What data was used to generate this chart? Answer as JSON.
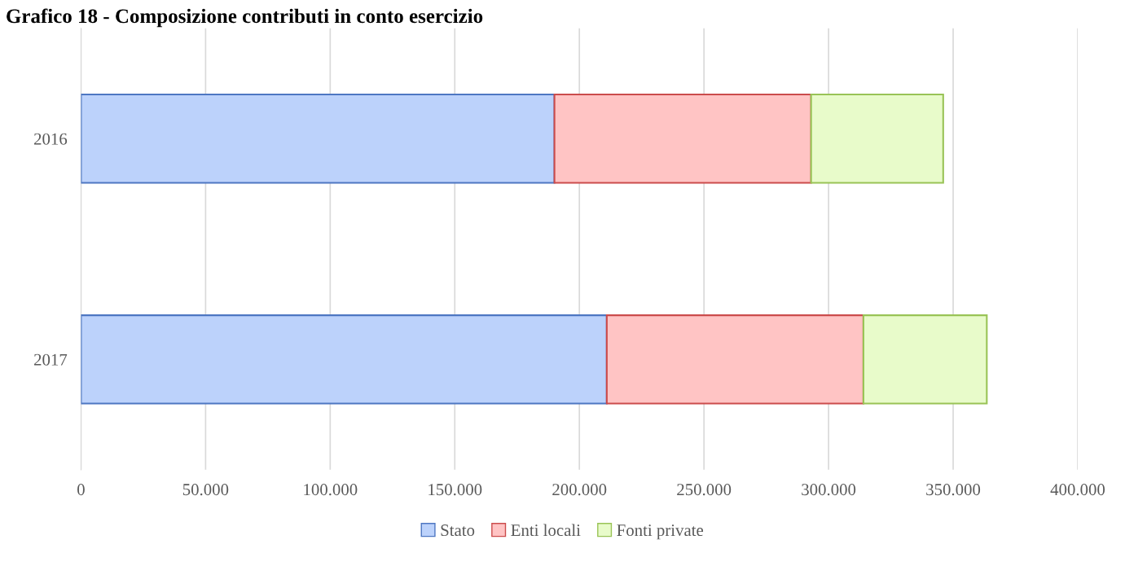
{
  "chart_data": {
    "type": "bar",
    "orientation": "horizontal",
    "stacked": true,
    "title": "Grafico 18 - Composizione contributi in conto esercizio",
    "categories": [
      "2016",
      "2017"
    ],
    "series": [
      {
        "name": "Stato",
        "color": "#bcd2fb",
        "values": [
          190000,
          211000
        ]
      },
      {
        "name": "Enti locali",
        "color": "#ffc4c4",
        "values": [
          103000,
          103000
        ]
      },
      {
        "name": "Fonti private",
        "color": "#e8fbca",
        "values": [
          53000,
          49500
        ]
      }
    ],
    "xlim": [
      0,
      400000
    ],
    "xticks": [
      0,
      {
        "value": 50000,
        "label": "50.000"
      },
      {
        "value": 100000,
        "label": "100.000"
      },
      {
        "value": 150000,
        "label": "150.000"
      },
      {
        "value": 200000,
        "label": "200.000"
      },
      {
        "value": 250000,
        "label": "250.000"
      },
      {
        "value": 300000,
        "label": "300.000"
      },
      {
        "value": 350000,
        "label": "350.000"
      },
      {
        "value": 400000,
        "label": "400.000"
      }
    ],
    "grid": "x",
    "legend": "bottom"
  }
}
